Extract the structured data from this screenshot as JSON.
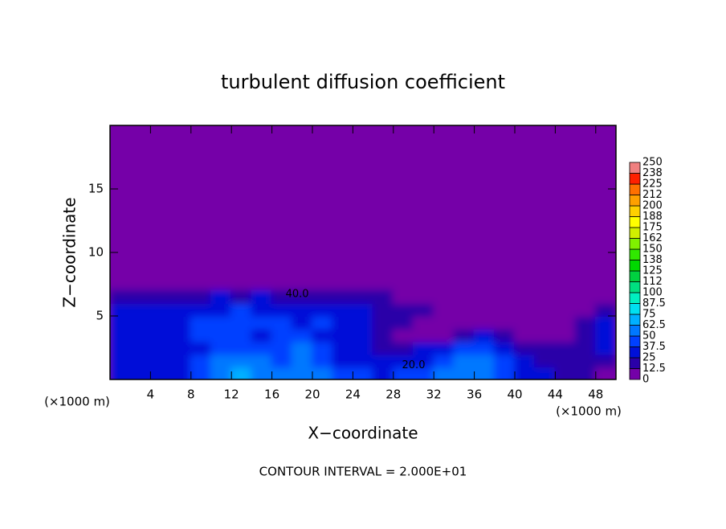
{
  "chart_data": {
    "type": "contour",
    "title": "turbulent diffusion coefficient",
    "x_label": "X−coordinate",
    "y_label": "Z−coordinate",
    "x_unit": "(×1000 m)",
    "y_unit": "(×1000 m)",
    "note": "CONTOUR INTERVAL = 2.000E+01",
    "contour_labels": [
      "40.0",
      "20.0"
    ],
    "xlim": [
      0,
      50
    ],
    "ylim": [
      0,
      20
    ],
    "xticks": [
      4,
      8,
      12,
      16,
      20,
      24,
      28,
      32,
      36,
      40,
      44,
      48
    ],
    "yticks": [
      5,
      10,
      15
    ],
    "colorbar": {
      "levels": [
        0,
        12.5,
        25,
        37.5,
        50,
        62.5,
        75,
        87.5,
        100,
        {
          "value": 112.5,
          "label": "112"
        },
        125,
        {
          "value": 137.5,
          "label": "138"
        },
        150,
        {
          "value": 162.5,
          "label": "162"
        },
        175,
        {
          "value": 187.5,
          "label": "188"
        },
        200,
        {
          "value": 212.5,
          "label": "212"
        },
        225,
        {
          "value": 237.5,
          "label": "238"
        },
        250
      ],
      "colors": [
        "#7400a8",
        "#2a00a8",
        "#0010d8",
        "#0040ff",
        "#0078ff",
        "#00b0ff",
        "#00e0f0",
        "#00f0c0",
        "#00e080",
        "#00d040",
        "#00d800",
        "#30e800",
        "#80f000",
        "#d0f000",
        "#ffff00",
        "#ffd000",
        "#ffa000",
        "#ff7000",
        "#ff2000",
        "#f08080"
      ]
    },
    "field": {
      "x": [
        1,
        3,
        5,
        7,
        9,
        11,
        13,
        15,
        17,
        19,
        21,
        23,
        25,
        27,
        29,
        31,
        33,
        35,
        37,
        39,
        41,
        43,
        45,
        47,
        49
      ],
      "z": [
        0.5,
        1.5,
        2.5,
        3.5,
        4.5,
        5.5,
        6.5
      ],
      "values": [
        [
          30,
          30,
          30,
          30,
          45,
          55,
          65,
          60,
          55,
          60,
          55,
          45,
          40,
          35,
          40,
          45,
          50,
          55,
          55,
          45,
          35,
          25,
          20,
          15,
          10
        ],
        [
          25,
          35,
          30,
          25,
          40,
          50,
          55,
          50,
          45,
          55,
          45,
          35,
          30,
          25,
          30,
          35,
          45,
          50,
          50,
          40,
          30,
          20,
          15,
          15,
          20
        ],
        [
          30,
          25,
          30,
          25,
          35,
          45,
          45,
          40,
          40,
          50,
          40,
          30,
          25,
          20,
          20,
          25,
          35,
          40,
          40,
          30,
          20,
          15,
          15,
          20,
          25
        ],
        [
          35,
          30,
          25,
          30,
          40,
          45,
          40,
          35,
          45,
          40,
          35,
          30,
          30,
          15,
          10,
          10,
          10,
          15,
          25,
          15,
          10,
          10,
          10,
          20,
          30
        ],
        [
          30,
          35,
          30,
          35,
          40,
          45,
          40,
          45,
          40,
          35,
          40,
          25,
          25,
          20,
          15,
          10,
          5,
          5,
          5,
          5,
          5,
          5,
          10,
          15,
          25
        ],
        [
          25,
          30,
          30,
          30,
          35,
          35,
          40,
          35,
          35,
          30,
          30,
          25,
          25,
          20,
          20,
          15,
          5,
          5,
          5,
          5,
          5,
          5,
          5,
          10,
          20
        ],
        [
          15,
          15,
          15,
          20,
          20,
          25,
          20,
          25,
          20,
          20,
          20,
          15,
          15,
          15,
          10,
          10,
          5,
          5,
          5,
          5,
          5,
          5,
          5,
          5,
          10
        ]
      ]
    }
  }
}
